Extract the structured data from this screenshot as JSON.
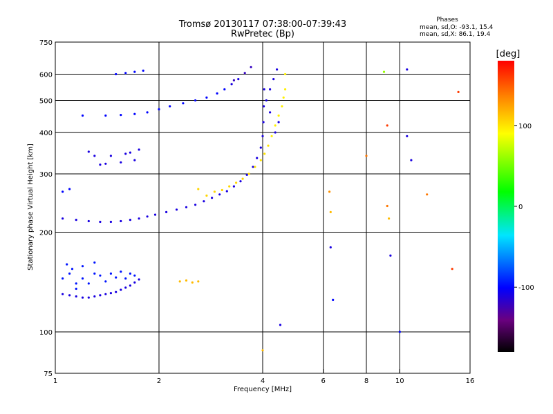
{
  "chart_data": {
    "type": "scatter",
    "title": "Tromsø 20130117 07:38:00-07:39:43",
    "subtitle": "RwPretec (Bp)",
    "xlabel": "Frequency [MHz]",
    "ylabel": "Stationary phase Virtual Height [km]",
    "x_scale": "log",
    "y_scale": "log",
    "xlim": [
      1,
      16
    ],
    "ylim": [
      75,
      750
    ],
    "x_ticks": [
      1,
      2,
      4,
      6,
      8,
      10,
      16
    ],
    "x_tick_labels": [
      "1",
      "2",
      "4",
      "6",
      "8",
      "10",
      "16"
    ],
    "y_ticks": [
      75,
      100,
      200,
      300,
      400,
      500,
      600,
      750
    ],
    "y_tick_labels": [
      "75",
      "100",
      "200",
      "300",
      "400",
      "500",
      "600",
      "750"
    ],
    "grid": true,
    "phases": {
      "heading": "Phases",
      "o_line": "mean, sd,O: -93.1, 15.4",
      "x_line": "mean, sd,X:  86.1, 19.4"
    },
    "colorbar": {
      "label": "[deg]",
      "range": [
        -180,
        180
      ],
      "ticks": [
        100,
        0,
        -100
      ],
      "tick_labels": [
        "100",
        "0",
        "-100"
      ]
    },
    "series": [
      {
        "points": [
          [
            1.05,
            130,
            -110
          ],
          [
            1.1,
            129,
            -110
          ],
          [
            1.15,
            128,
            -110
          ],
          [
            1.2,
            127,
            -110
          ],
          [
            1.25,
            127,
            -110
          ],
          [
            1.3,
            128,
            -110
          ],
          [
            1.35,
            129,
            -110
          ],
          [
            1.4,
            130,
            -110
          ],
          [
            1.45,
            131,
            -110
          ],
          [
            1.5,
            132,
            -110
          ],
          [
            1.55,
            134,
            -110
          ],
          [
            1.6,
            136,
            -110
          ],
          [
            1.65,
            138,
            -110
          ],
          [
            1.7,
            141,
            -110
          ],
          [
            1.75,
            144,
            -110
          ],
          [
            1.05,
            145,
            -95
          ],
          [
            1.1,
            150,
            -95
          ],
          [
            1.15,
            140,
            -95
          ],
          [
            1.2,
            145,
            -95
          ],
          [
            1.25,
            140,
            -95
          ],
          [
            1.3,
            150,
            -95
          ],
          [
            1.35,
            148,
            -95
          ],
          [
            1.4,
            142,
            -95
          ],
          [
            1.45,
            150,
            -95
          ],
          [
            1.5,
            146,
            -95
          ],
          [
            1.55,
            152,
            -95
          ],
          [
            1.6,
            145,
            -95
          ],
          [
            1.65,
            150,
            -95
          ],
          [
            1.7,
            148,
            -95
          ],
          [
            1.08,
            160,
            -95
          ],
          [
            1.12,
            155,
            -95
          ],
          [
            1.2,
            158,
            -95
          ],
          [
            1.3,
            162,
            -95
          ],
          [
            1.15,
            135,
            -95
          ],
          [
            1.05,
            220,
            -110
          ],
          [
            1.15,
            218,
            -110
          ],
          [
            1.25,
            216,
            -110
          ],
          [
            1.35,
            215,
            -110
          ],
          [
            1.45,
            215,
            -110
          ],
          [
            1.55,
            216,
            -110
          ],
          [
            1.65,
            218,
            -110
          ],
          [
            1.75,
            220,
            -110
          ],
          [
            1.85,
            223,
            -110
          ],
          [
            1.95,
            226,
            -110
          ],
          [
            2.1,
            230,
            -110
          ],
          [
            2.25,
            234,
            -110
          ],
          [
            2.4,
            238,
            -110
          ],
          [
            2.55,
            242,
            -110
          ],
          [
            2.7,
            248,
            -110
          ],
          [
            2.85,
            254,
            -110
          ],
          [
            3.0,
            260,
            -110
          ],
          [
            3.15,
            266,
            -110
          ],
          [
            3.3,
            275,
            -110
          ],
          [
            3.45,
            285,
            -110
          ],
          [
            3.6,
            298,
            -110
          ],
          [
            3.75,
            315,
            -110
          ],
          [
            3.85,
            335,
            -110
          ],
          [
            3.95,
            360,
            -110
          ],
          [
            4.0,
            390,
            -110
          ],
          [
            4.02,
            430,
            -110
          ],
          [
            4.03,
            480,
            -110
          ],
          [
            4.04,
            540,
            -110
          ],
          [
            1.35,
            320,
            -110
          ],
          [
            1.4,
            322,
            -110
          ],
          [
            1.45,
            340,
            -110
          ],
          [
            1.55,
            325,
            -110
          ],
          [
            1.6,
            345,
            -110
          ],
          [
            1.65,
            348,
            -110
          ],
          [
            1.7,
            330,
            -110
          ],
          [
            1.75,
            355,
            -110
          ],
          [
            1.25,
            350,
            -110
          ],
          [
            1.3,
            340,
            -110
          ],
          [
            1.4,
            450,
            -100
          ],
          [
            1.55,
            452,
            -100
          ],
          [
            1.7,
            455,
            -100
          ],
          [
            1.85,
            460,
            -100
          ],
          [
            2.0,
            470,
            -100
          ],
          [
            2.15,
            480,
            -100
          ],
          [
            2.35,
            490,
            -100
          ],
          [
            2.55,
            500,
            -100
          ],
          [
            2.75,
            510,
            -100
          ],
          [
            2.95,
            525,
            -100
          ],
          [
            3.1,
            540,
            -100
          ],
          [
            3.25,
            560,
            -110
          ],
          [
            3.4,
            580,
            -110
          ],
          [
            3.55,
            605,
            -120
          ],
          [
            3.7,
            630,
            -120
          ],
          [
            3.3,
            575,
            -120
          ],
          [
            1.5,
            600,
            -100
          ],
          [
            1.6,
            605,
            -100
          ],
          [
            1.7,
            610,
            -100
          ],
          [
            1.8,
            615,
            -100
          ],
          [
            1.2,
            450,
            -100
          ],
          [
            1.1,
            270,
            -100
          ],
          [
            1.05,
            265,
            -100
          ],
          [
            2.3,
            142,
            115
          ],
          [
            2.4,
            143,
            115
          ],
          [
            2.5,
            141,
            115
          ],
          [
            2.6,
            142,
            115
          ],
          [
            2.9,
            265,
            105
          ],
          [
            3.05,
            268,
            105
          ],
          [
            3.2,
            275,
            105
          ],
          [
            3.35,
            282,
            105
          ],
          [
            3.5,
            290,
            105
          ],
          [
            3.65,
            300,
            105
          ],
          [
            3.8,
            315,
            100
          ],
          [
            3.95,
            330,
            100
          ],
          [
            4.05,
            345,
            100
          ],
          [
            4.15,
            365,
            100
          ],
          [
            4.25,
            390,
            95
          ],
          [
            4.35,
            420,
            95
          ],
          [
            4.45,
            450,
            95
          ],
          [
            4.55,
            480,
            95
          ],
          [
            4.6,
            510,
            95
          ],
          [
            4.65,
            540,
            95
          ],
          [
            4.65,
            600,
            95
          ],
          [
            2.75,
            258,
            105
          ],
          [
            2.6,
            270,
            105
          ],
          [
            4.4,
            620,
            -110
          ],
          [
            4.3,
            580,
            -110
          ],
          [
            4.2,
            540,
            -110
          ],
          [
            4.1,
            500,
            -110
          ],
          [
            4.2,
            460,
            -110
          ],
          [
            4.45,
            430,
            -110
          ],
          [
            4.35,
            400,
            -110
          ],
          [
            6.3,
            180,
            -110
          ],
          [
            6.4,
            125,
            -100
          ],
          [
            6.3,
            230,
            115
          ],
          [
            6.25,
            265,
            130
          ],
          [
            9.2,
            240,
            140
          ],
          [
            9.3,
            220,
            115
          ],
          [
            9.4,
            170,
            -110
          ],
          [
            10.5,
            620,
            -110
          ],
          [
            10.5,
            390,
            -110
          ],
          [
            10.8,
            330,
            -110
          ],
          [
            12.0,
            260,
            140
          ],
          [
            14.8,
            530,
            160
          ],
          [
            14.2,
            155,
            160
          ],
          [
            9.0,
            610,
            60
          ],
          [
            8.0,
            340,
            140
          ],
          [
            9.2,
            420,
            160
          ],
          [
            10.0,
            100,
            -100
          ],
          [
            4.5,
            105,
            -110
          ],
          [
            4.0,
            88,
            115
          ]
        ]
      }
    ]
  }
}
